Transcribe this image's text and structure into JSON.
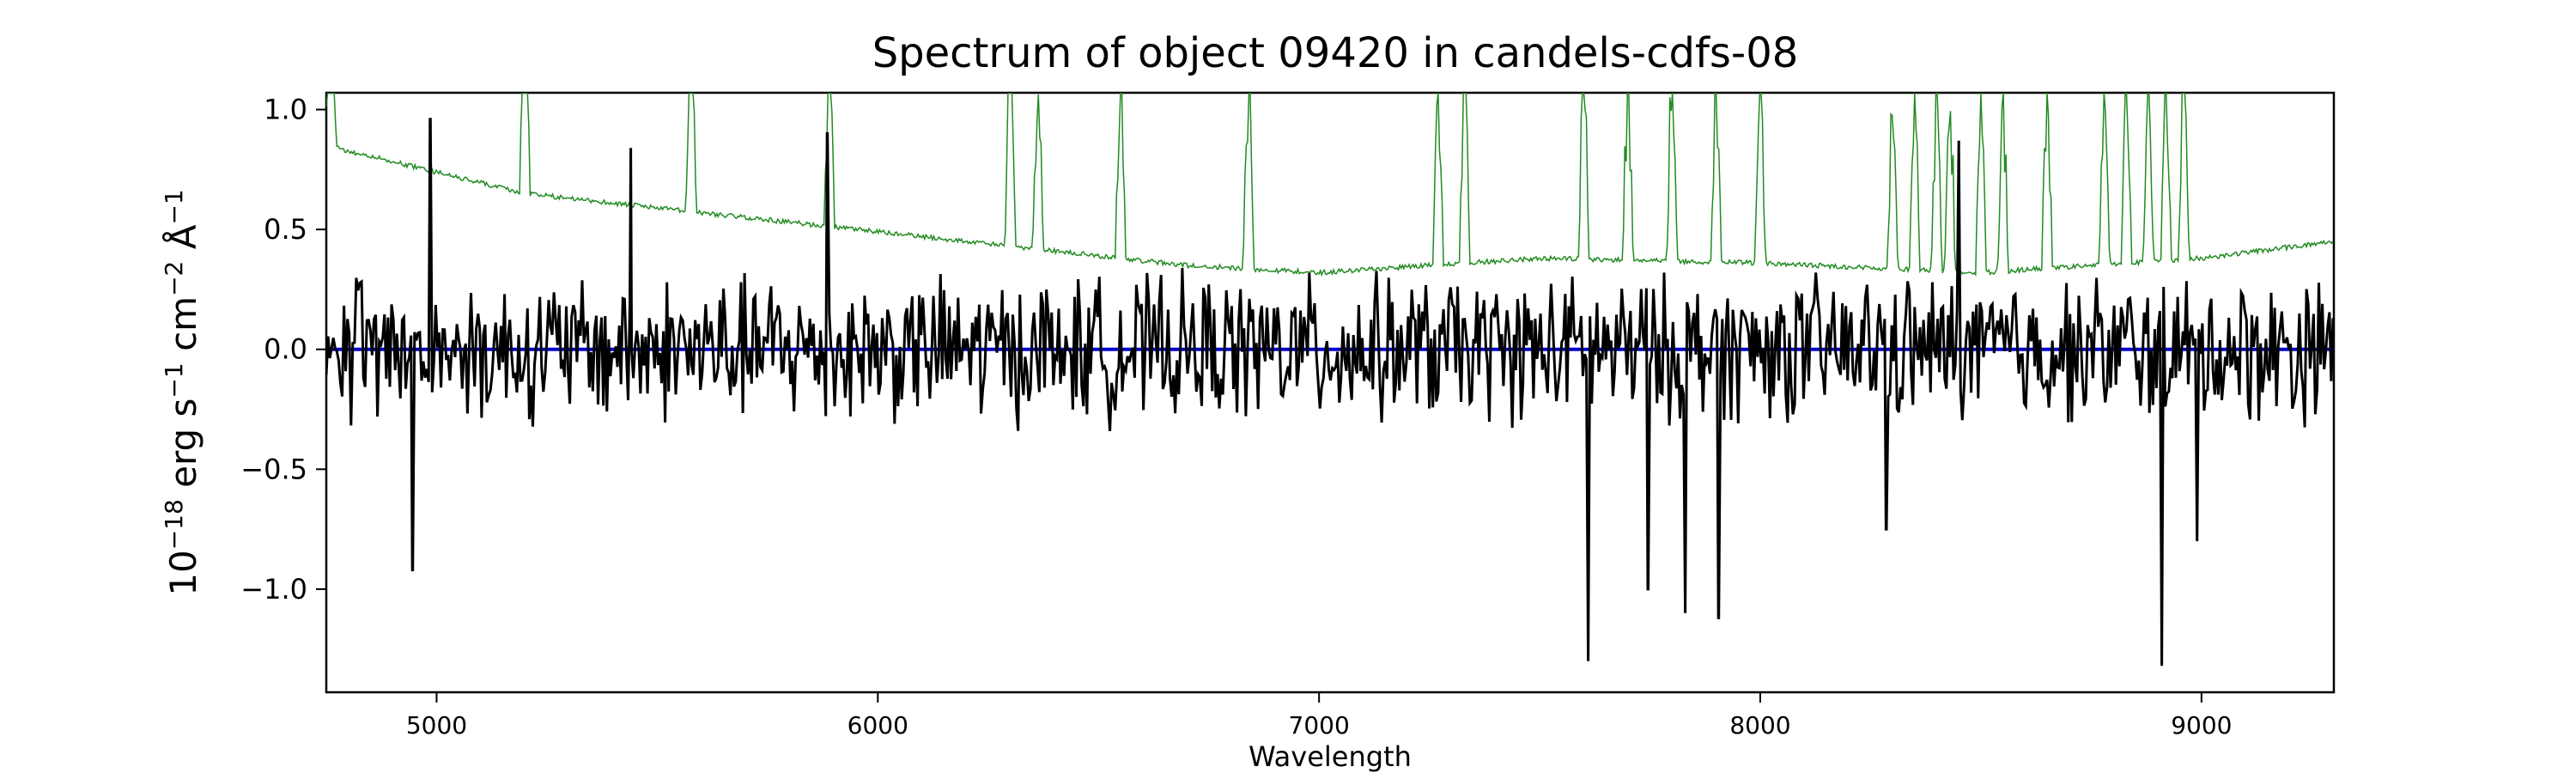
{
  "chart_data": {
    "type": "line",
    "title": "Spectrum of object 09420 in candels-cdfs-08",
    "xlabel": "Wavelength",
    "ylabel_parts": {
      "coefficient": "10",
      "exponent": "−18",
      "unit_erg": " erg s",
      "exp_s": "−1",
      "unit_cm": " cm",
      "exp_cm": "−2",
      "unit_angstrom": " Å",
      "exp_angstrom": "−1"
    },
    "xlim": [
      4750,
      9300
    ],
    "ylim": [
      -1.43,
      1.07
    ],
    "xticks": [
      5000,
      6000,
      7000,
      8000,
      9000
    ],
    "xtick_labels": [
      "5000",
      "6000",
      "7000",
      "8000",
      "9000"
    ],
    "yticks": [
      -1.0,
      -0.5,
      0.0,
      0.5,
      1.0
    ],
    "ytick_labels": [
      "−1.0",
      "−0.5",
      "0.0",
      "0.5",
      "1.0"
    ],
    "grid": false,
    "colors": {
      "flux": "#000000",
      "error": "#228b22",
      "zero": "#0000cc"
    },
    "series": [
      {
        "role": "flux",
        "note_range": [
          4750,
          9300
        ],
        "noise_amplitude": 0.25,
        "features": [
          {
            "x": 4945,
            "y": -0.92
          },
          {
            "x": 4985,
            "y": 0.96
          },
          {
            "x": 5440,
            "y": 0.84
          },
          {
            "x": 5885,
            "y": 0.9
          },
          {
            "x": 7610,
            "y": -1.3
          },
          {
            "x": 7745,
            "y": -1.0
          },
          {
            "x": 7830,
            "y": -1.1
          },
          {
            "x": 7905,
            "y": -1.12
          },
          {
            "x": 8285,
            "y": -0.75
          },
          {
            "x": 8450,
            "y": 0.87
          },
          {
            "x": 8910,
            "y": -1.32
          },
          {
            "x": 8990,
            "y": -0.8
          }
        ]
      },
      {
        "role": "error",
        "continuum": [
          {
            "x": 4750,
            "y": 0.85
          },
          {
            "x": 5200,
            "y": 0.65
          },
          {
            "x": 5700,
            "y": 0.55
          },
          {
            "x": 6200,
            "y": 0.45
          },
          {
            "x": 6700,
            "y": 0.35
          },
          {
            "x": 7000,
            "y": 0.32
          },
          {
            "x": 7500,
            "y": 0.38
          },
          {
            "x": 8000,
            "y": 0.36
          },
          {
            "x": 8500,
            "y": 0.32
          },
          {
            "x": 9000,
            "y": 0.38
          },
          {
            "x": 9300,
            "y": 0.45
          }
        ],
        "emission_lines": [
          4760,
          5200,
          5577,
          5890,
          6300,
          6363,
          6550,
          6840,
          7270,
          7330,
          7600,
          7700,
          7800,
          7900,
          8000,
          8300,
          8350,
          8400,
          8430,
          8500,
          8550,
          8650,
          8780,
          8830,
          8880,
          8920,
          8960
        ]
      },
      {
        "role": "zero",
        "x": [
          4750,
          9300
        ],
        "y": [
          0,
          0
        ]
      }
    ]
  }
}
